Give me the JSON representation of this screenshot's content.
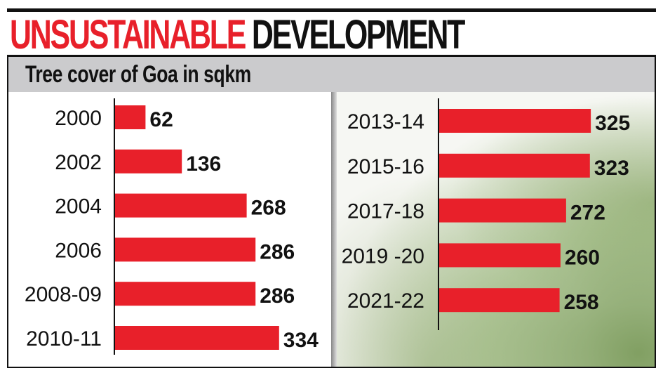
{
  "title": {
    "part1": "UNSUSTAINABLE",
    "part2": "DEVELOPMENT"
  },
  "subtitle": "Tree cover of Goa in sqkm",
  "colors": {
    "bar": "#e8202a",
    "title_accent": "#e8202a",
    "subhead_bg": "#cbcbcd"
  },
  "chart_data": [
    {
      "type": "bar",
      "orientation": "horizontal",
      "categories": [
        "2000",
        "2002",
        "2004",
        "2006",
        "2008-09",
        "2010-11"
      ],
      "values": [
        62,
        136,
        268,
        286,
        286,
        334
      ],
      "data_labels": true
    },
    {
      "type": "bar",
      "orientation": "horizontal",
      "categories": [
        "2013-14",
        "2015-16",
        "2017-18",
        "2019 -20",
        "2021-22"
      ],
      "values": [
        325,
        323,
        272,
        260,
        258
      ],
      "data_labels": true
    }
  ]
}
